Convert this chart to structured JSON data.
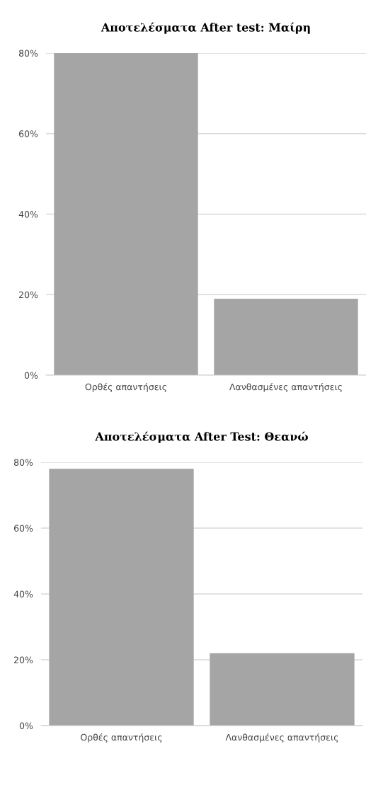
{
  "chart_data": [
    {
      "type": "bar",
      "title": "Αποτελέσματα After test: Μαίρη",
      "categories": [
        "Ορθές απαντήσεις",
        "Λανθασμένες απαντήσεις"
      ],
      "values": [
        80,
        19
      ],
      "color": "#a5a5a5",
      "ylim": [
        0,
        80
      ],
      "yticks": [
        {
          "value": 0,
          "label": "0%"
        },
        {
          "value": 20,
          "label": "20%"
        },
        {
          "value": 40,
          "label": "40%"
        },
        {
          "value": 60,
          "label": "60%"
        },
        {
          "value": 80,
          "label": "80%"
        }
      ],
      "grid": "y"
    },
    {
      "type": "bar",
      "title": "Αποτελέσματα After Test: Θεανώ",
      "categories": [
        "Ορθές απαντήσεις",
        "Λανθασμένες απαντήσεις"
      ],
      "values": [
        78,
        22
      ],
      "color": "#a5a5a5",
      "ylim": [
        0,
        80
      ],
      "yticks": [
        {
          "value": 0,
          "label": "0%"
        },
        {
          "value": 20,
          "label": "20%"
        },
        {
          "value": 40,
          "label": "40%"
        },
        {
          "value": 60,
          "label": "60%"
        },
        {
          "value": 80,
          "label": "80%"
        }
      ],
      "grid": "y"
    }
  ]
}
